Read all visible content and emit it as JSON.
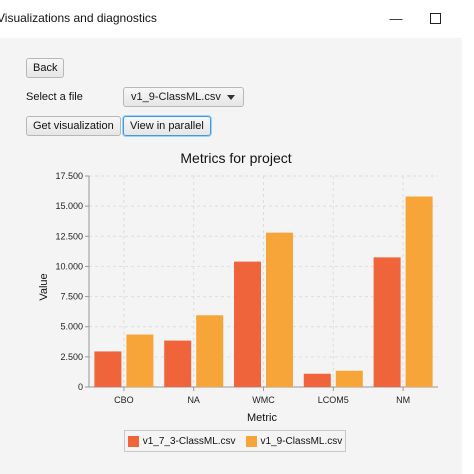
{
  "window": {
    "title": "Visualizations and diagnostics",
    "minimize_icon": "minimize-icon",
    "maximize_icon": "maximize-icon"
  },
  "controls": {
    "back_label": "Back",
    "select_file_label": "Select a file",
    "file_select_value": "v1_9-ClassML.csv",
    "get_visualization_label": "Get visualization",
    "view_parallel_label": "View in parallel"
  },
  "chart_data": {
    "type": "bar",
    "title": "Metrics for project",
    "xlabel": "Metric",
    "ylabel": "Value",
    "ylim": [
      0,
      17500
    ],
    "yticks": [
      0,
      2500,
      5000,
      7500,
      10000,
      12500,
      15000,
      17500
    ],
    "ytick_labels": [
      "0",
      "2.500",
      "5.000",
      "7.500",
      "10.000",
      "12.500",
      "15.000",
      "17.500"
    ],
    "categories": [
      "CBO",
      "NA",
      "WMC",
      "LCOM5",
      "NM"
    ],
    "grid": true,
    "legend_position": "bottom",
    "series": [
      {
        "name": "v1_7_3-ClassML.csv",
        "color": "#f0643c",
        "values": [
          2950,
          3850,
          10400,
          1100,
          10750
        ]
      },
      {
        "name": "v1_9-ClassML.csv",
        "color": "#f7a538",
        "values": [
          4350,
          5950,
          12800,
          1350,
          15800
        ]
      }
    ]
  }
}
